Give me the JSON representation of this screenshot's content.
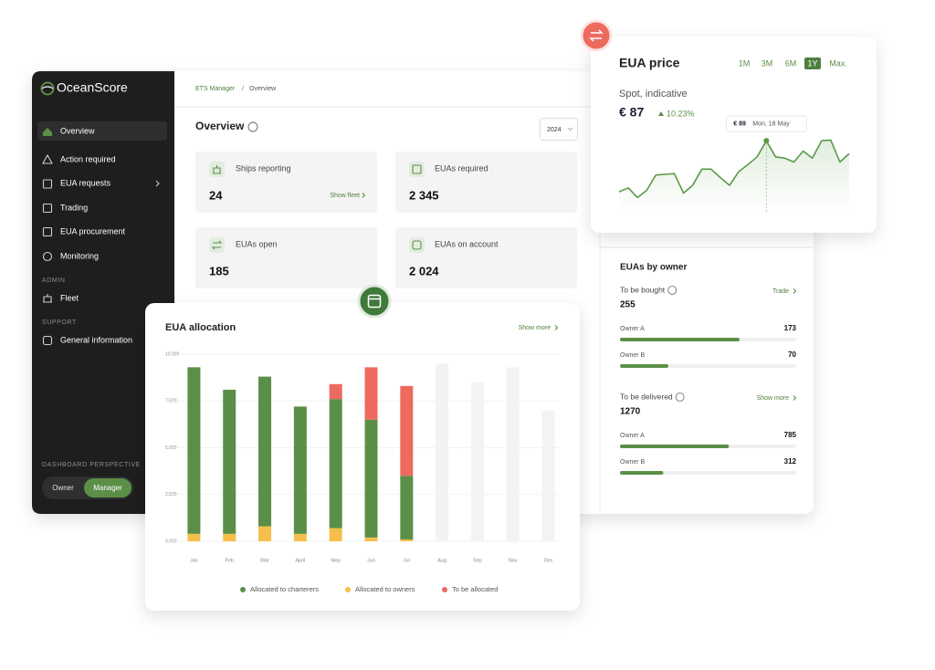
{
  "sidebar": {
    "logo": "OceanScore",
    "nav": [
      "Overview",
      "Action required",
      "EUA requests",
      "Trading",
      "EUA procurement",
      "Monitoring"
    ],
    "admin_label": "ADMIN",
    "admin_nav": [
      "Fleet"
    ],
    "support_label": "SUPPORT",
    "support_nav": [
      "General information"
    ],
    "perspective_label": "DASHBOARD PERSPECTIVE",
    "perspective_options": [
      "Owner",
      "Manager"
    ]
  },
  "breadcrumb": {
    "items": [
      "ETS Manager",
      "Overview"
    ],
    "separator": "/"
  },
  "overview": {
    "title": "Overview",
    "year": "2024",
    "cards": [
      {
        "label": "Ships reporting",
        "value": "24",
        "link": "Show fleet"
      },
      {
        "label": "EUAs required",
        "value": "2 345"
      },
      {
        "label": "EUAs open",
        "value": "185"
      },
      {
        "label": "EUAs on account",
        "value": "2 024"
      }
    ]
  },
  "chart_data": [
    {
      "type": "bar",
      "stacked": true,
      "title": "EUA allocation",
      "link": "Show more",
      "categories": [
        "Jan",
        "Feb",
        "Mar",
        "April",
        "May",
        "Jun",
        "Jul",
        "Aug",
        "Sep",
        "Nov",
        "Dec"
      ],
      "series": [
        {
          "name": "Allocated to charterers",
          "color": "#5b8f47",
          "values": [
            8900,
            7700,
            8000,
            6800,
            6900,
            6300,
            3400,
            null,
            null,
            null,
            null
          ]
        },
        {
          "name": "Allocated to owners",
          "color": "#f6bf4b",
          "values": [
            400,
            400,
            800,
            400,
            700,
            200,
            100,
            null,
            null,
            null,
            null
          ]
        },
        {
          "name": "To be allocated",
          "color": "#ec6a5e",
          "values": [
            null,
            null,
            null,
            null,
            800,
            2800,
            4800,
            null,
            null,
            null,
            null
          ]
        }
      ],
      "placeholder": {
        "color": "#f3f3f3",
        "values": [
          null,
          null,
          null,
          null,
          null,
          null,
          null,
          9500,
          8500,
          9300,
          7000
        ]
      },
      "ylim": [
        0,
        10000
      ],
      "yticks": [
        {
          "value": 0,
          "label": "0.000"
        },
        {
          "value": 2500,
          "label": "2.500"
        },
        {
          "value": 5000,
          "label": "5.000"
        },
        {
          "value": 7500,
          "label": "7.500"
        },
        {
          "value": 10000,
          "label": "10.000"
        }
      ],
      "grid": true
    },
    {
      "type": "line",
      "title": "EUA price",
      "ranges": [
        "1M",
        "3M",
        "6M",
        "1Y",
        "Max."
      ],
      "active_range": "1Y",
      "subtitle": "Spot, indicative",
      "price": "€ 87",
      "change": "10.23%",
      "color": "#5b9a48",
      "values": [
        81.1,
        81.7,
        80.2,
        81.3,
        83.7,
        83.8,
        83.9,
        80.9,
        82.1,
        84.6,
        84.6,
        83.3,
        82.1,
        84.2,
        85.3,
        86.5,
        89,
        86.5,
        86.3,
        85.7,
        87.4,
        86.3,
        89,
        89.1,
        85.7,
        87
      ],
      "ylim": [
        78,
        91
      ],
      "tooltip": {
        "value": 89,
        "label": "€ 89",
        "date": "Mon, 18 May"
      }
    }
  ],
  "euas_by_owner": {
    "title": "EUAs by owner",
    "groups": [
      {
        "label": "To be bought",
        "total": 255,
        "link": "Trade",
        "owners": [
          {
            "name": "Owner A",
            "value": 173
          },
          {
            "name": "Owner B",
            "value": 70
          }
        ]
      },
      {
        "label": "To be delivered",
        "total": 1270,
        "link": "Show more",
        "owners": [
          {
            "name": "Owner A",
            "value": 785
          },
          {
            "name": "Owner B",
            "value": 312
          }
        ]
      }
    ]
  }
}
